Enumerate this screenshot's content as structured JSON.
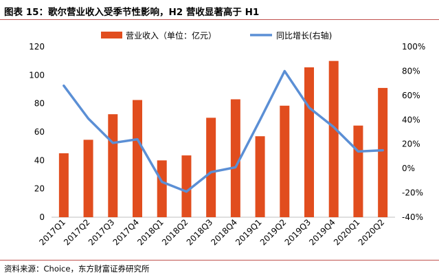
{
  "title": "图表 15：歌尔营业收入受季节性影响，H2 营收显著高于 H1",
  "source": "资料来源：Choice，东方财富证券研究所",
  "colors": {
    "bar": "#e14d1e",
    "line": "#5b8fd5",
    "axis": "#bfbfbf",
    "rule": "#c0504d"
  },
  "chart_data": {
    "type": "bar",
    "categories": [
      "2017Q1",
      "2017Q2",
      "2017Q3",
      "2017Q4",
      "2018Q1",
      "2018Q2",
      "2018Q3",
      "2018Q4",
      "2019Q1",
      "2019Q2",
      "2019Q3",
      "2019Q4",
      "2020Q1",
      "2020Q2"
    ],
    "series": [
      {
        "name": "营业收入（单位：亿元）",
        "type": "bar",
        "axis": "left",
        "values": [
          45,
          54.5,
          72.5,
          82.5,
          40,
          43.5,
          70,
          83,
          57,
          78.5,
          105.5,
          110,
          64.5,
          91
        ]
      },
      {
        "name": "同比增长(右轴)",
        "type": "line",
        "axis": "right",
        "values": [
          68,
          41,
          21,
          24,
          -11,
          -19,
          -3,
          1,
          40,
          80,
          50,
          34,
          14,
          15
        ]
      }
    ],
    "left_axis": {
      "min": 0,
      "max": 120,
      "ticks": [
        "0",
        "20",
        "40",
        "60",
        "80",
        "100",
        "120"
      ]
    },
    "right_axis": {
      "min": -40,
      "max": 100,
      "ticks": [
        "-40%",
        "-20%",
        "0%",
        "20%",
        "40%",
        "60%",
        "80%",
        "100%"
      ]
    },
    "legend": [
      "营业收入（单位：亿元）",
      "同比增长(右轴)"
    ]
  }
}
